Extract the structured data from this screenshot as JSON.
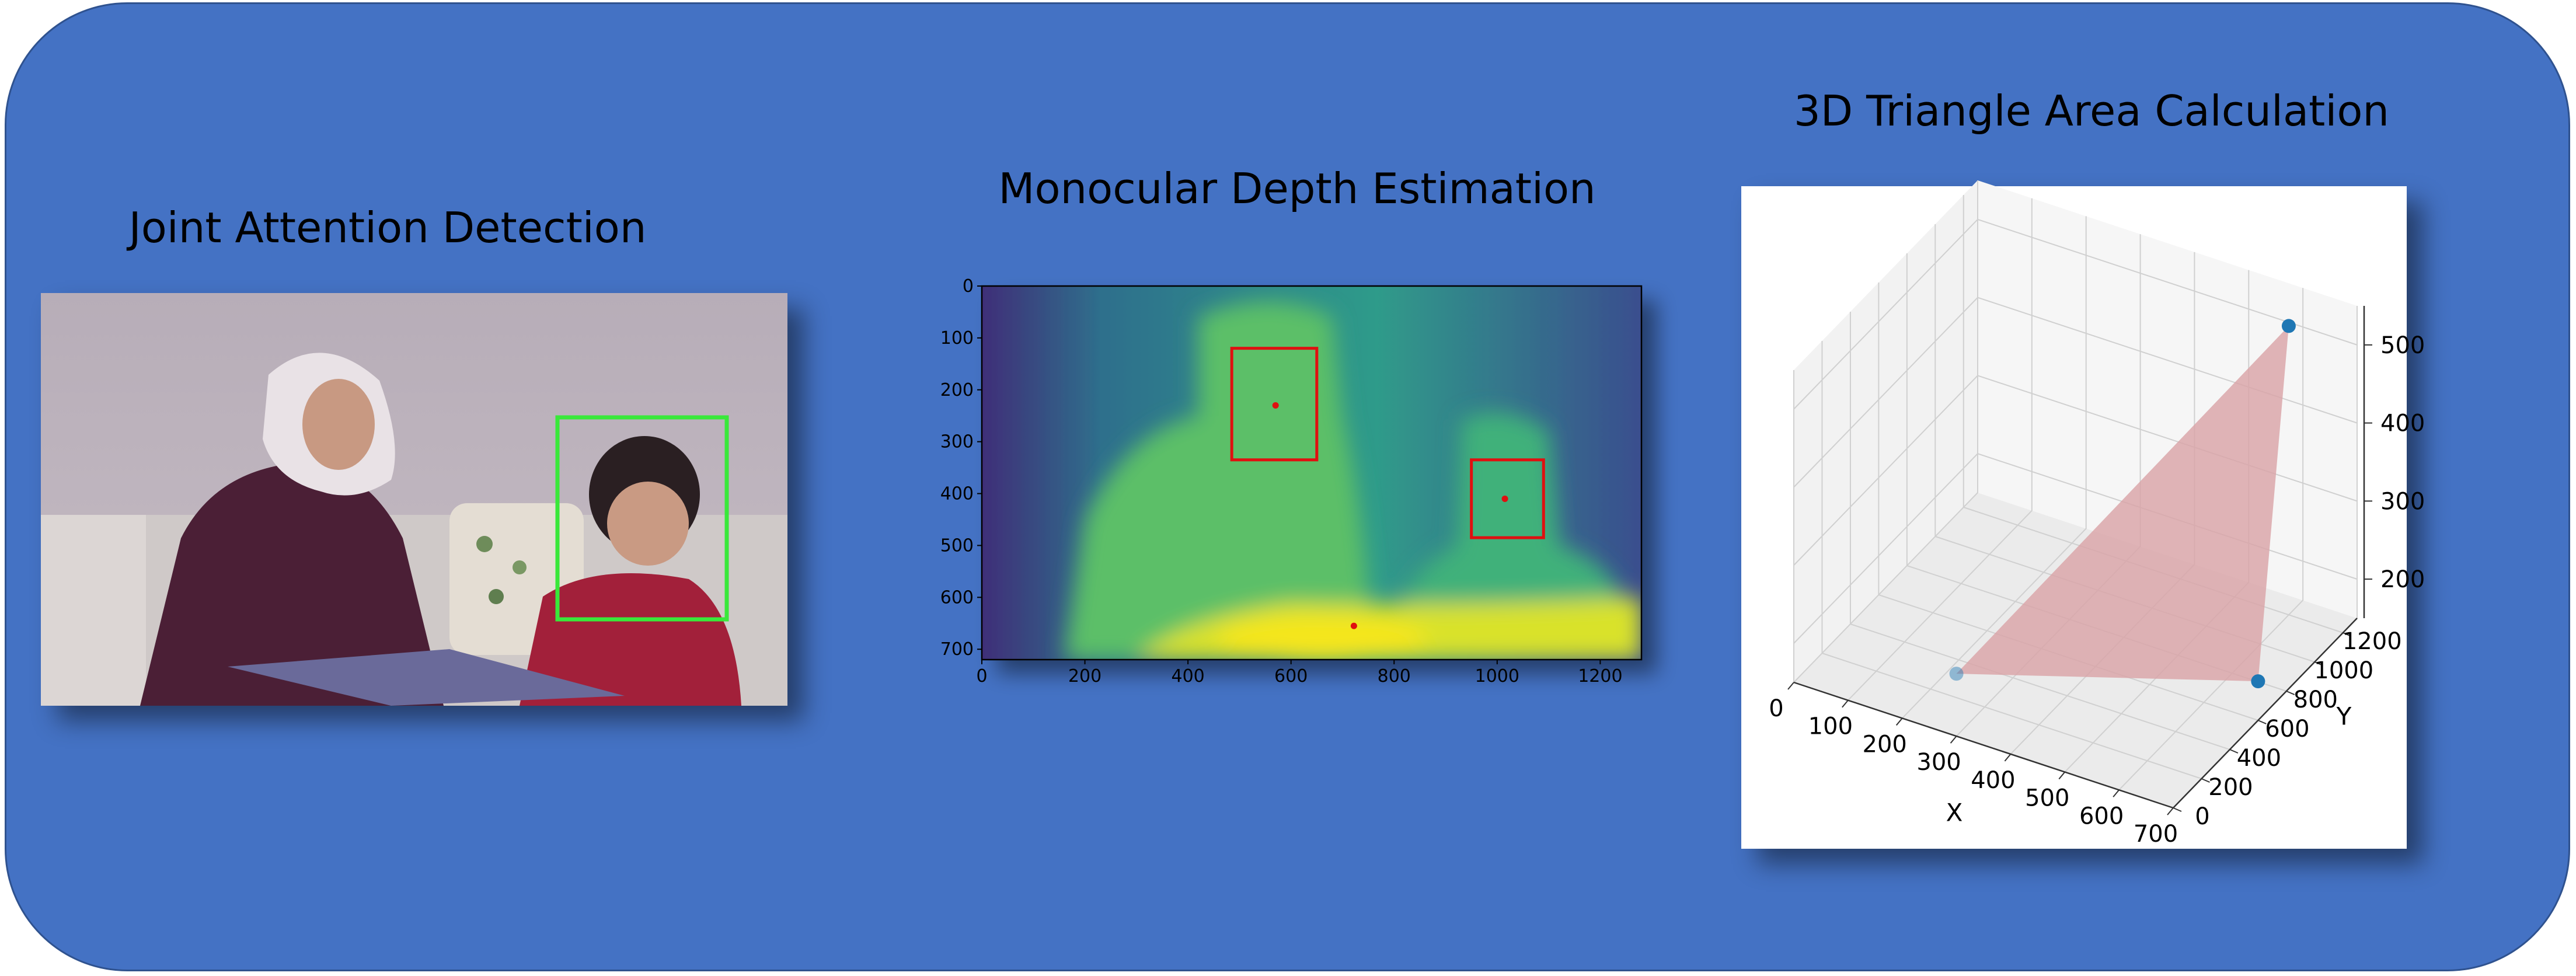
{
  "titles": {
    "joint_attention": "Joint Attention Detection",
    "depth": "Monocular Depth Estimation",
    "triangle": "3D Triangle Area Calculation"
  },
  "colors": {
    "background": "#4472c4",
    "detection_box": "#39e83a",
    "depth_box": "#e01010",
    "triangle_fill": "#d9a3a6",
    "point": "#1f77b4"
  },
  "chart_data": [
    {
      "type": "heatmap",
      "xlim": [
        0,
        1280
      ],
      "ylim": [
        720,
        0
      ],
      "x_ticks": [
        "0",
        "200",
        "400",
        "600",
        "800",
        "1000",
        "1200"
      ],
      "y_ticks": [
        "0",
        "100",
        "200",
        "300",
        "400",
        "500",
        "600",
        "700"
      ],
      "boxes": [
        {
          "x0": 485,
          "y0": 120,
          "x1": 650,
          "y1": 335,
          "center": [
            570,
            230
          ]
        },
        {
          "x0": 950,
          "y0": 335,
          "x1": 1090,
          "y1": 485,
          "center": [
            1015,
            410
          ]
        }
      ],
      "extra_points": [
        [
          722,
          655
        ]
      ]
    },
    {
      "type": "scatter",
      "x_ticks": [
        "0",
        "100",
        "200",
        "300",
        "400",
        "500",
        "600",
        "700"
      ],
      "y_ticks": [
        "0",
        "200",
        "400",
        "600",
        "800",
        "1000",
        "1200"
      ],
      "z_ticks": [
        "200",
        "300",
        "400",
        "500"
      ],
      "xlabel": "X",
      "ylabel": "Y",
      "points": [
        {
          "x": 300,
          "y": 0,
          "z": 230
        },
        {
          "x": 700,
          "y": 600,
          "z": 200
        },
        {
          "x": 600,
          "y": 1200,
          "z": 520
        }
      ]
    }
  ]
}
